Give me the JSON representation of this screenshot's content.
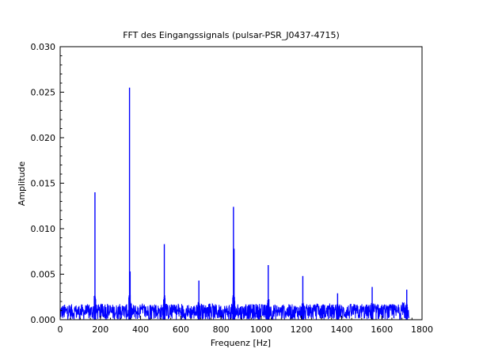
{
  "chart_data": {
    "type": "line",
    "title": "FFT des Eingangssignals (pulsar-PSR_J0437-4715)",
    "xlabel": "Frequenz [Hz]",
    "ylabel": "Amplitude",
    "xlim": [
      0,
      1800
    ],
    "ylim": [
      0,
      0.03
    ],
    "xticks": [
      "0",
      "200",
      "400",
      "600",
      "800",
      "1000",
      "1200",
      "1400",
      "1600",
      "1800"
    ],
    "yticks": [
      "0.000",
      "0.005",
      "0.010",
      "0.015",
      "0.020",
      "0.025",
      "0.030"
    ],
    "grid": false,
    "line_color": "#0000ff",
    "noise_floor": {
      "x_range": [
        0,
        1735
      ],
      "mean_amplitude": 0.0009,
      "max_amplitude": 0.0017
    },
    "series": [
      {
        "values": [
          {
            "x": 173,
            "y": 0.014
          },
          {
            "x": 345,
            "y": 0.0255
          },
          {
            "x": 348,
            "y": 0.0053
          },
          {
            "x": 518,
            "y": 0.0083
          },
          {
            "x": 690,
            "y": 0.0043
          },
          {
            "x": 862,
            "y": 0.0124
          },
          {
            "x": 865,
            "y": 0.0078
          },
          {
            "x": 1035,
            "y": 0.006
          },
          {
            "x": 1207,
            "y": 0.0048
          },
          {
            "x": 1380,
            "y": 0.0029
          },
          {
            "x": 1552,
            "y": 0.0036
          },
          {
            "x": 1724,
            "y": 0.0033
          }
        ]
      }
    ]
  }
}
